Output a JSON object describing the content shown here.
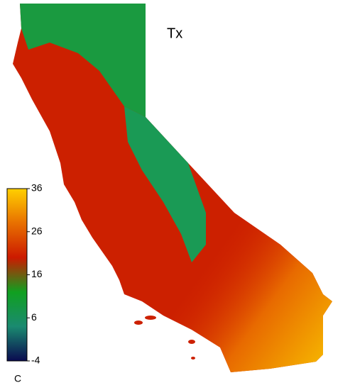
{
  "chart_data": {
    "type": "map",
    "title": "Tx",
    "colorbar": {
      "label": "C",
      "lim": [
        -4,
        36
      ],
      "ticks": [
        36,
        26,
        16,
        6,
        -4
      ],
      "colors": [
        "#0a0a50",
        "#1a8a70",
        "#10a020",
        "#cc1a00",
        "#e87000",
        "#ffd000"
      ]
    }
  }
}
